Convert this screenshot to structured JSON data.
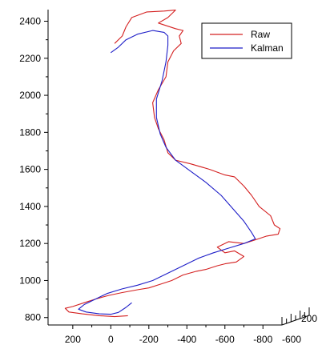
{
  "chart_data": {
    "type": "line",
    "title": "",
    "xlabel": "",
    "ylabel": "",
    "xlim": [
      330,
      -900
    ],
    "ylim": [
      760,
      2480
    ],
    "x_ticks": [
      "200",
      "0",
      "-200",
      "-400",
      "-600",
      "-800"
    ],
    "x_tick_values": [
      200,
      0,
      -200,
      -400,
      -600,
      -800
    ],
    "y_ticks": [
      "800",
      "1000",
      "1200",
      "1400",
      "1600",
      "1800",
      "2000",
      "2200",
      "2400"
    ],
    "y_tick_values": [
      800,
      1000,
      1200,
      1400,
      1600,
      1800,
      2000,
      2200,
      2400
    ],
    "depth_ticks": [
      "-600",
      "200"
    ],
    "legend_position": "top-right",
    "colors": {
      "Raw": "#d42020",
      "Kalman": "#1f1fc8"
    },
    "series": [
      {
        "name": "Raw",
        "points": [
          [
            -20,
            2280
          ],
          [
            -60,
            2320
          ],
          [
            -80,
            2370
          ],
          [
            -110,
            2420
          ],
          [
            -190,
            2450
          ],
          [
            -280,
            2455
          ],
          [
            -340,
            2460
          ],
          [
            -300,
            2420
          ],
          [
            -250,
            2390
          ],
          [
            -340,
            2360
          ],
          [
            -380,
            2350
          ],
          [
            -360,
            2320
          ],
          [
            -370,
            2280
          ],
          [
            -330,
            2240
          ],
          [
            -300,
            2180
          ],
          [
            -290,
            2100
          ],
          [
            -250,
            2030
          ],
          [
            -220,
            1960
          ],
          [
            -230,
            1880
          ],
          [
            -250,
            1820
          ],
          [
            -280,
            1760
          ],
          [
            -300,
            1690
          ],
          [
            -340,
            1650
          ],
          [
            -420,
            1630
          ],
          [
            -520,
            1600
          ],
          [
            -600,
            1570
          ],
          [
            -650,
            1560
          ],
          [
            -700,
            1510
          ],
          [
            -740,
            1460
          ],
          [
            -780,
            1400
          ],
          [
            -840,
            1350
          ],
          [
            -860,
            1300
          ],
          [
            -890,
            1280
          ],
          [
            -880,
            1250
          ],
          [
            -820,
            1240
          ],
          [
            -760,
            1220
          ],
          [
            -700,
            1200
          ],
          [
            -620,
            1210
          ],
          [
            -560,
            1180
          ],
          [
            -600,
            1150
          ],
          [
            -650,
            1160
          ],
          [
            -700,
            1130
          ],
          [
            -660,
            1100
          ],
          [
            -600,
            1090
          ],
          [
            -560,
            1080
          ],
          [
            -500,
            1060
          ],
          [
            -450,
            1050
          ],
          [
            -380,
            1030
          ],
          [
            -320,
            1000
          ],
          [
            -260,
            980
          ],
          [
            -200,
            960
          ],
          [
            -140,
            950
          ],
          [
            -60,
            935
          ],
          [
            10,
            920
          ],
          [
            80,
            900
          ],
          [
            140,
            880
          ],
          [
            200,
            860
          ],
          [
            240,
            850
          ],
          [
            220,
            830
          ],
          [
            150,
            820
          ],
          [
            60,
            810
          ],
          [
            -20,
            805
          ],
          [
            -90,
            810
          ]
        ]
      },
      {
        "name": "Kalman",
        "points": [
          [
            0,
            2230
          ],
          [
            -40,
            2260
          ],
          [
            -80,
            2300
          ],
          [
            -140,
            2330
          ],
          [
            -220,
            2350
          ],
          [
            -280,
            2340
          ],
          [
            -300,
            2320
          ],
          [
            -300,
            2270
          ],
          [
            -290,
            2180
          ],
          [
            -270,
            2080
          ],
          [
            -240,
            1980
          ],
          [
            -240,
            1880
          ],
          [
            -260,
            1790
          ],
          [
            -290,
            1720
          ],
          [
            -340,
            1650
          ],
          [
            -420,
            1590
          ],
          [
            -500,
            1530
          ],
          [
            -580,
            1460
          ],
          [
            -640,
            1390
          ],
          [
            -700,
            1320
          ],
          [
            -740,
            1260
          ],
          [
            -760,
            1225
          ],
          [
            -700,
            1200
          ],
          [
            -620,
            1175
          ],
          [
            -540,
            1150
          ],
          [
            -460,
            1120
          ],
          [
            -380,
            1080
          ],
          [
            -300,
            1040
          ],
          [
            -220,
            1000
          ],
          [
            -140,
            975
          ],
          [
            -60,
            955
          ],
          [
            20,
            930
          ],
          [
            80,
            900
          ],
          [
            140,
            870
          ],
          [
            170,
            845
          ],
          [
            130,
            830
          ],
          [
            60,
            820
          ],
          [
            0,
            818
          ],
          [
            -40,
            828
          ],
          [
            -80,
            855
          ],
          [
            -110,
            880
          ]
        ]
      }
    ]
  }
}
